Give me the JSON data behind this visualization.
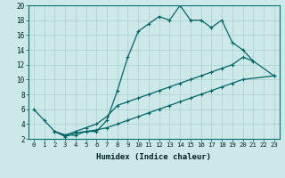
{
  "xlabel": "Humidex (Indice chaleur)",
  "bg_color": "#cce8e8",
  "grid_color": "#aacfcf",
  "line_color": "#006666",
  "xlim": [
    -0.5,
    23.5
  ],
  "ylim": [
    2,
    20
  ],
  "xticks": [
    0,
    1,
    2,
    3,
    4,
    5,
    6,
    7,
    8,
    9,
    10,
    11,
    12,
    13,
    14,
    15,
    16,
    17,
    18,
    19,
    20,
    21,
    22,
    23
  ],
  "yticks": [
    2,
    4,
    6,
    8,
    10,
    12,
    14,
    16,
    18,
    20
  ],
  "line1_x": [
    0,
    1,
    2,
    3,
    4,
    5,
    6,
    7,
    8,
    9,
    10,
    11,
    12,
    13,
    14,
    15,
    16,
    17,
    18,
    19,
    20,
    21
  ],
  "line1_y": [
    6,
    4.5,
    3,
    2.5,
    2.5,
    3.0,
    3.0,
    4.5,
    8.5,
    13.0,
    16.5,
    17.5,
    18.5,
    18.0,
    20.0,
    18.0,
    18.0,
    17.0,
    18.0,
    15.0,
    14.0,
    12.5
  ],
  "line2_x": [
    2,
    3,
    4,
    5,
    6,
    7,
    8,
    9,
    10,
    11,
    12,
    13,
    14,
    15,
    16,
    17,
    18,
    19,
    20,
    21,
    23
  ],
  "line2_y": [
    3.0,
    2.5,
    3.0,
    3.5,
    4.0,
    5.0,
    6.5,
    7.0,
    7.5,
    8.0,
    8.5,
    9.0,
    9.5,
    10.0,
    10.5,
    11.0,
    11.5,
    12.0,
    13.0,
    12.5,
    10.5
  ],
  "line3_x": [
    2,
    3,
    4,
    5,
    6,
    7,
    8,
    9,
    10,
    11,
    12,
    13,
    14,
    15,
    16,
    17,
    18,
    19,
    20,
    23
  ],
  "line3_y": [
    3.0,
    2.3,
    2.8,
    3.0,
    3.2,
    3.5,
    4.0,
    4.5,
    5.0,
    5.5,
    6.0,
    6.5,
    7.0,
    7.5,
    8.0,
    8.5,
    9.0,
    9.5,
    10.0,
    10.5
  ]
}
